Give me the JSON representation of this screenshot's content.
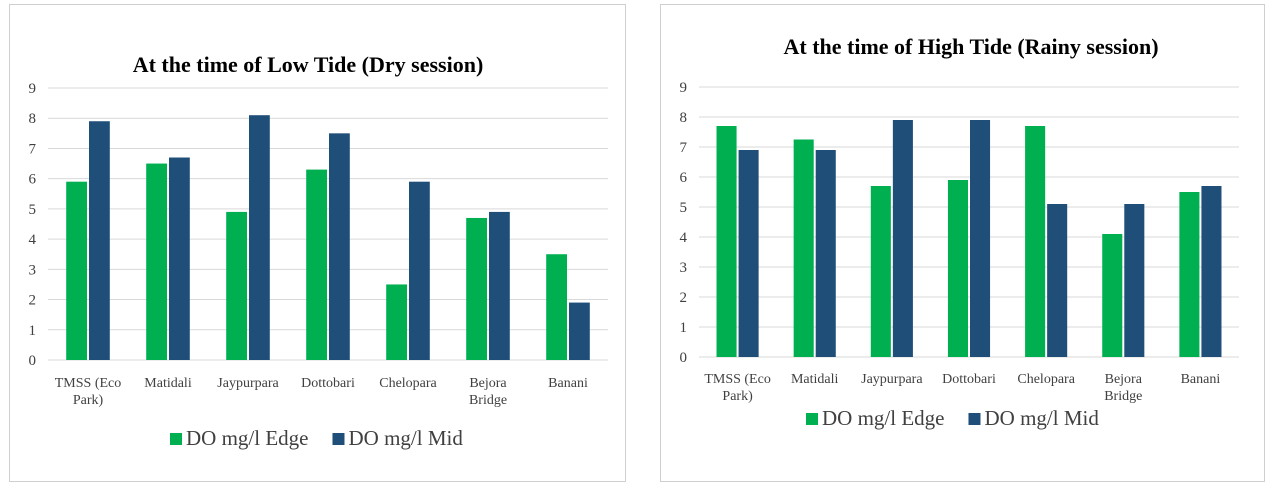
{
  "chart_data": [
    {
      "type": "bar",
      "title": "At the time of Low Tide (Dry session)",
      "categories": [
        [
          "TMSS (Eco",
          "Park)"
        ],
        [
          "Matidali"
        ],
        [
          "Jaypurpara"
        ],
        [
          "Dottobari"
        ],
        [
          "Chelopara"
        ],
        [
          "Bejora",
          "Bridge"
        ],
        [
          "Banani"
        ]
      ],
      "series": [
        {
          "name": "DO mg/l Edge",
          "color": "#00b050",
          "values": [
            5.9,
            6.5,
            4.9,
            6.3,
            2.5,
            4.7,
            3.5
          ]
        },
        {
          "name": "DO mg/l Mid",
          "color": "#1f4e79",
          "values": [
            7.9,
            6.7,
            8.1,
            7.5,
            5.9,
            4.9,
            1.9
          ]
        }
      ],
      "yticks": [
        "0",
        "1",
        "2",
        "3",
        "4",
        "5",
        "6",
        "7",
        "8",
        "9"
      ],
      "ylim": [
        0,
        9
      ],
      "grid": true,
      "legend": "bottom"
    },
    {
      "type": "bar",
      "title": "At the time of High Tide (Rainy session)",
      "categories": [
        [
          "TMSS (Eco",
          "Park)"
        ],
        [
          "Matidali"
        ],
        [
          "Jaypurpara"
        ],
        [
          "Dottobari"
        ],
        [
          "Chelopara"
        ],
        [
          "Bejora",
          "Bridge"
        ],
        [
          "Banani"
        ]
      ],
      "series": [
        {
          "name": "DO mg/l Edge",
          "color": "#00b050",
          "values": [
            7.7,
            7.25,
            5.7,
            5.9,
            7.7,
            4.1,
            5.5
          ]
        },
        {
          "name": "DO mg/l Mid",
          "color": "#1f4e79",
          "values": [
            6.9,
            6.9,
            7.9,
            7.9,
            5.1,
            5.1,
            5.7
          ]
        }
      ],
      "yticks": [
        "0",
        "1",
        "2",
        "3",
        "4",
        "5",
        "6",
        "7",
        "8",
        "9"
      ],
      "ylim": [
        0,
        9
      ],
      "grid": true,
      "legend": "bottom"
    }
  ]
}
